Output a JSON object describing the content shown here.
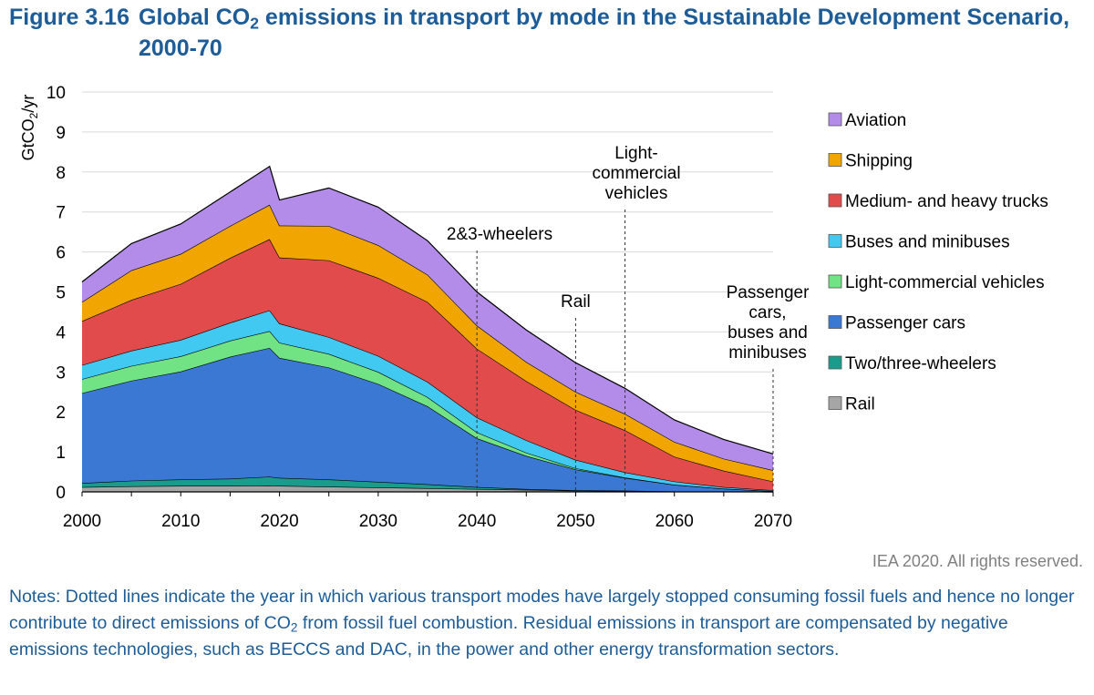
{
  "figure": {
    "number": "Figure 3.16",
    "title_before_sub": "Global CO",
    "title_sub": "2",
    "title_after_sub": " emissions in transport by mode in the Sustainable Development Scenario, 2000-70"
  },
  "credit": "IEA 2020. All rights reserved.",
  "notes": {
    "part1": "Notes: Dotted lines indicate the year in which various transport modes have largely stopped consuming fossil fuels and hence no longer contribute to direct emissions of CO",
    "sub": "2",
    "part2": " from fossil fuel combustion. Residual emissions in transport are compensated by negative emissions technologies, such as BECCS and DAC, in the power and other energy transformation sectors."
  },
  "chart_data": {
    "type": "area",
    "stacked": true,
    "ylabel_main": "GtCO",
    "ylabel_sub": "2",
    "ylabel_tail": "/yr",
    "x": [
      2000,
      2005,
      2010,
      2015,
      2019,
      2020,
      2025,
      2030,
      2035,
      2040,
      2045,
      2050,
      2055,
      2060,
      2065,
      2070
    ],
    "x_ticks": [
      2000,
      2010,
      2020,
      2030,
      2040,
      2050,
      2060,
      2070
    ],
    "y_ticks": [
      0,
      1,
      2,
      3,
      4,
      5,
      6,
      7,
      8,
      9,
      10
    ],
    "xlim": [
      2000,
      2070
    ],
    "ylim": [
      0,
      10
    ],
    "grid": true,
    "legend_position": "right",
    "series": [
      {
        "name": "Rail",
        "color": "#a6a6a6",
        "values": [
          0.12,
          0.14,
          0.15,
          0.15,
          0.16,
          0.15,
          0.13,
          0.11,
          0.09,
          0.07,
          0.05,
          0.03,
          0.02,
          0.01,
          0.01,
          0.0
        ]
      },
      {
        "name": "Two/three-wheelers",
        "color": "#1a9c8c",
        "values": [
          0.1,
          0.14,
          0.16,
          0.18,
          0.22,
          0.2,
          0.18,
          0.14,
          0.1,
          0.05,
          0.02,
          0.01,
          0.01,
          0.0,
          0.0,
          0.0
        ]
      },
      {
        "name": "Passenger cars",
        "color": "#3b78d4",
        "values": [
          2.25,
          2.5,
          2.7,
          3.05,
          3.22,
          3.0,
          2.8,
          2.45,
          1.95,
          1.22,
          0.83,
          0.52,
          0.32,
          0.17,
          0.07,
          0.02
        ]
      },
      {
        "name": "Light-commercial vehicles",
        "color": "#72e384",
        "values": [
          0.35,
          0.37,
          0.38,
          0.4,
          0.42,
          0.38,
          0.34,
          0.3,
          0.23,
          0.15,
          0.08,
          0.03,
          0.01,
          0.0,
          0.0,
          0.0
        ]
      },
      {
        "name": "Buses and minibuses",
        "color": "#42c9f2",
        "values": [
          0.35,
          0.38,
          0.41,
          0.45,
          0.52,
          0.48,
          0.42,
          0.4,
          0.38,
          0.37,
          0.31,
          0.21,
          0.13,
          0.08,
          0.04,
          0.02
        ]
      },
      {
        "name": "Medium- and heavy trucks",
        "color": "#e24b4b",
        "values": [
          1.1,
          1.27,
          1.4,
          1.62,
          1.78,
          1.65,
          1.92,
          1.95,
          2.0,
          1.72,
          1.48,
          1.25,
          1.05,
          0.62,
          0.41,
          0.22
        ]
      },
      {
        "name": "Shipping",
        "color": "#f0a500",
        "values": [
          0.48,
          0.74,
          0.75,
          0.8,
          0.86,
          0.8,
          0.86,
          0.82,
          0.68,
          0.58,
          0.48,
          0.45,
          0.41,
          0.37,
          0.3,
          0.28
        ]
      },
      {
        "name": "Aviation",
        "color": "#b28ce8",
        "values": [
          0.5,
          0.67,
          0.75,
          0.85,
          0.96,
          0.64,
          0.95,
          0.95,
          0.85,
          0.84,
          0.8,
          0.73,
          0.64,
          0.55,
          0.48,
          0.41
        ]
      }
    ],
    "annotations": [
      {
        "x": 2040,
        "lines": [
          "2&3-wheelers"
        ]
      },
      {
        "x": 2050,
        "lines": [
          "Rail"
        ]
      },
      {
        "x": 2055,
        "lines": [
          "Light-",
          "commercial",
          "vehicles"
        ]
      },
      {
        "x": 2070,
        "lines": [
          "Passenger",
          "cars,",
          "buses and",
          "minibuses"
        ]
      }
    ]
  }
}
